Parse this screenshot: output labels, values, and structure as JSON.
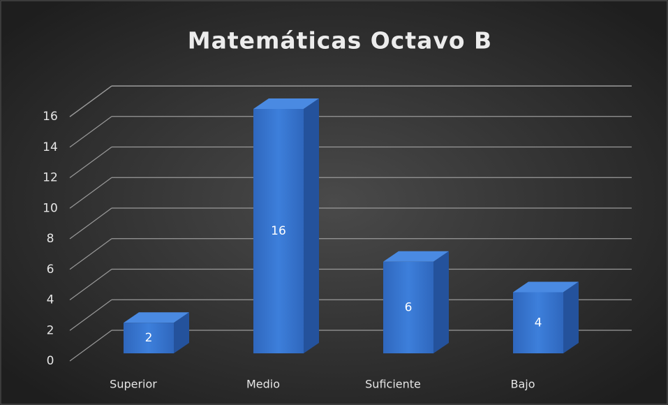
{
  "chart_data": {
    "type": "bar3d",
    "title": "Matemáticas Octavo B",
    "categories": [
      "Superior",
      "Medio",
      "Suficiente",
      "Bajo"
    ],
    "values": [
      2,
      16,
      6,
      4
    ],
    "color": "#3a78d4",
    "ylim": [
      0,
      18
    ],
    "yticks": [
      0,
      2,
      4,
      6,
      8,
      10,
      12,
      14,
      16
    ],
    "grid": true
  }
}
